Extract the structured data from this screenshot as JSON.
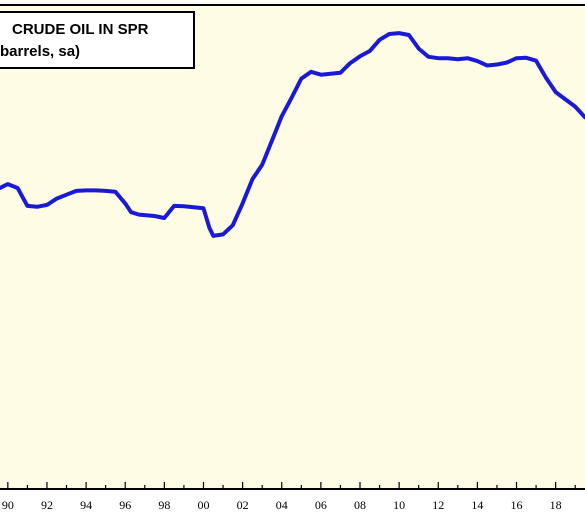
{
  "chart_data": {
    "type": "line",
    "title_lines": [
      "CRUDE OIL IN SPR",
      "barrels, sa)"
    ],
    "xlabel": "",
    "ylabel": "",
    "x_tick_labels": [
      "90",
      "92",
      "94",
      "96",
      "98",
      "00",
      "02",
      "04",
      "06",
      "08",
      "10",
      "12",
      "14",
      "16",
      "18"
    ],
    "x_tick_values": [
      1990,
      1992,
      1994,
      1996,
      1998,
      2000,
      2002,
      2004,
      2006,
      2008,
      2010,
      2012,
      2014,
      2016,
      2018
    ],
    "xlim": [
      1989.6,
      2019.5
    ],
    "ylim": [
      0,
      100
    ],
    "grid": false,
    "colors": {
      "background": "#fffce6",
      "line": "#1a1ad6",
      "frame": "#000000"
    },
    "series": [
      {
        "x": [
          1989.6,
          1990.0,
          1990.5,
          1991.0,
          1991.5,
          1992.0,
          1992.5,
          1993.0,
          1993.5,
          1994.0,
          1994.5,
          1995.0,
          1995.5,
          1996.0,
          1996.3,
          1996.7,
          1997.0,
          1997.5,
          1998.0,
          1998.5,
          1999.0,
          1999.5,
          2000.0,
          2000.3,
          2000.5,
          2001.0,
          2001.5,
          2002.0,
          2002.5,
          2003.0,
          2003.5,
          2004.0,
          2004.5,
          2005.0,
          2005.5,
          2006.0,
          2006.5,
          2007.0,
          2007.5,
          2008.0,
          2008.5,
          2009.0,
          2009.5,
          2010.0,
          2010.5,
          2011.0,
          2011.5,
          2012.0,
          2012.5,
          2013.0,
          2013.5,
          2014.0,
          2014.5,
          2015.0,
          2015.5,
          2016.0,
          2016.5,
          2017.0,
          2017.5,
          2018.0,
          2018.5,
          2019.0,
          2019.5
        ],
        "values": [
          62.2,
          63.0,
          62.2,
          58.5,
          58.3,
          58.7,
          60.0,
          60.8,
          61.6,
          61.7,
          61.7,
          61.6,
          61.4,
          59.0,
          57.2,
          56.7,
          56.6,
          56.4,
          56.0,
          58.5,
          58.4,
          58.2,
          58.0,
          54.0,
          52.3,
          52.6,
          54.5,
          59.0,
          64.0,
          67.0,
          72.0,
          77.0,
          80.8,
          84.8,
          86.2,
          85.6,
          85.8,
          86.0,
          88.0,
          89.4,
          90.5,
          92.8,
          94.0,
          94.2,
          93.8,
          91.0,
          89.3,
          89.0,
          89.0,
          88.8,
          89.0,
          88.4,
          87.5,
          87.7,
          88.1,
          89.0,
          89.1,
          88.5,
          85.0,
          82.0,
          80.5,
          79.0,
          76.8
        ]
      }
    ]
  }
}
